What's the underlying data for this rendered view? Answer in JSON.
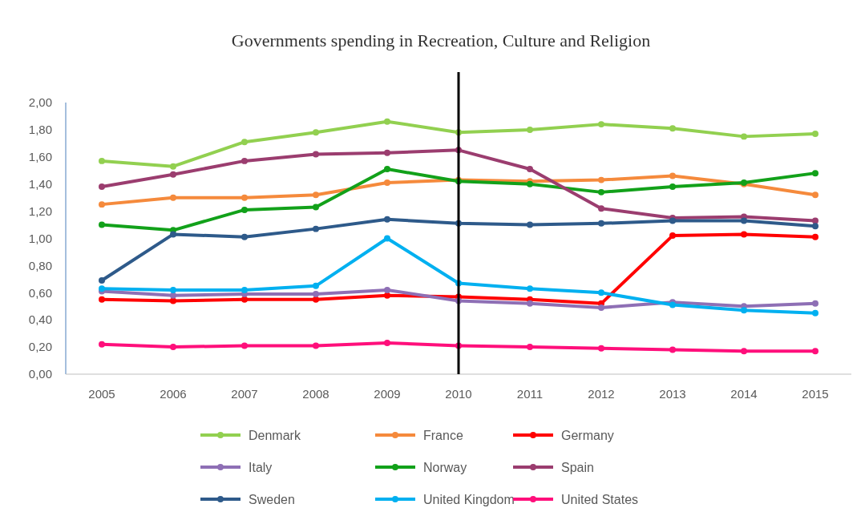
{
  "chart_data": {
    "type": "line",
    "title": "Governments spending in Recreation, Culture and Religion",
    "categories": [
      "2005",
      "2006",
      "2007",
      "2008",
      "2009",
      "2010",
      "2011",
      "2012",
      "2013",
      "2014",
      "2015"
    ],
    "series": [
      {
        "name": "Denmark",
        "color": "#92d050",
        "values": [
          1.57,
          1.53,
          1.71,
          1.78,
          1.86,
          1.78,
          1.8,
          1.84,
          1.81,
          1.75,
          1.77
        ]
      },
      {
        "name": "France",
        "color": "#f58a3c",
        "values": [
          1.25,
          1.3,
          1.3,
          1.32,
          1.41,
          1.43,
          1.42,
          1.43,
          1.46,
          1.4,
          1.32
        ]
      },
      {
        "name": "Germany",
        "color": "#ff0000",
        "values": [
          0.55,
          0.54,
          0.55,
          0.55,
          0.58,
          0.57,
          0.55,
          0.52,
          1.02,
          1.03,
          1.01
        ]
      },
      {
        "name": "Italy",
        "color": "#8e6fb5",
        "values": [
          0.61,
          0.58,
          0.59,
          0.59,
          0.62,
          0.54,
          0.52,
          0.49,
          0.53,
          0.5,
          0.52
        ]
      },
      {
        "name": "Norway",
        "color": "#12a11a",
        "values": [
          1.1,
          1.06,
          1.21,
          1.23,
          1.51,
          1.42,
          1.4,
          1.34,
          1.38,
          1.41,
          1.48
        ]
      },
      {
        "name": "Spain",
        "color": "#9b3d6f",
        "values": [
          1.38,
          1.47,
          1.57,
          1.62,
          1.63,
          1.65,
          1.51,
          1.22,
          1.15,
          1.16,
          1.13
        ]
      },
      {
        "name": "Sweden",
        "color": "#2e5a8a",
        "values": [
          0.69,
          1.03,
          1.01,
          1.07,
          1.14,
          1.11,
          1.1,
          1.11,
          1.13,
          1.13,
          1.09
        ]
      },
      {
        "name": "United Kingdom",
        "color": "#00b0f0",
        "values": [
          0.63,
          0.62,
          0.62,
          0.65,
          1.0,
          0.67,
          0.63,
          0.6,
          0.51,
          0.47,
          0.45
        ]
      },
      {
        "name": "United States",
        "color": "#ff0f7b",
        "values": [
          0.22,
          0.2,
          0.21,
          0.21,
          0.23,
          0.21,
          0.2,
          0.19,
          0.18,
          0.17,
          0.17
        ]
      }
    ],
    "ylim": [
      0,
      2
    ],
    "yticks": [
      {
        "value": 0,
        "label": "0,00"
      },
      {
        "value": 0.2,
        "label": "0,20"
      },
      {
        "value": 0.4,
        "label": "0,40"
      },
      {
        "value": 0.6,
        "label": "0,60"
      },
      {
        "value": 0.8,
        "label": "0,80"
      },
      {
        "value": 1,
        "label": "1,00"
      },
      {
        "value": 1.2,
        "label": "1,20"
      },
      {
        "value": 1.4,
        "label": "1,40"
      },
      {
        "value": 1.6,
        "label": "1,60"
      },
      {
        "value": 1.8,
        "label": "1,80"
      },
      {
        "value": 2,
        "label": "2,00"
      }
    ],
    "ref_lines": [
      {
        "axis": "x",
        "value": "2010",
        "color": "#000000"
      }
    ],
    "legend": "bottom",
    "marker": "circle",
    "line_style": "solid"
  }
}
